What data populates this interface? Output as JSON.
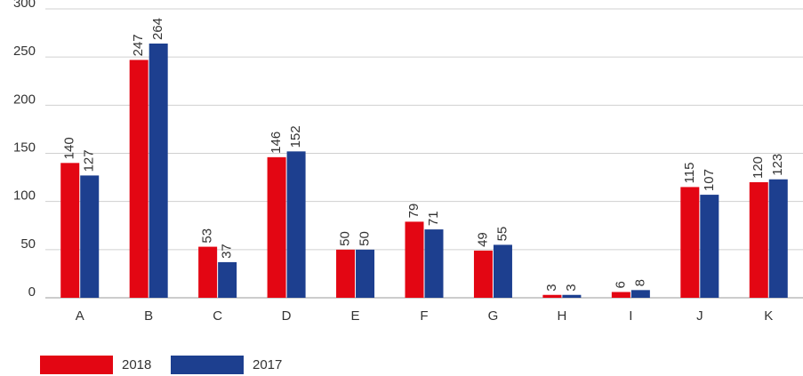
{
  "chart_data": {
    "type": "bar",
    "categories": [
      "A",
      "B",
      "C",
      "D",
      "E",
      "F",
      "G",
      "H",
      "I",
      "J",
      "K"
    ],
    "series": [
      {
        "name": "2018",
        "color": "#e30613",
        "values": [
          140,
          247,
          53,
          146,
          50,
          79,
          49,
          3,
          6,
          115,
          120
        ]
      },
      {
        "name": "2017",
        "color": "#1d3f8f",
        "values": [
          127,
          264,
          37,
          152,
          50,
          71,
          55,
          3,
          8,
          107,
          123
        ]
      }
    ],
    "ylim": [
      0,
      300
    ],
    "yticks": [
      0,
      50,
      100,
      150,
      200,
      250,
      300
    ],
    "grid": true,
    "legend": "bottom-left"
  }
}
